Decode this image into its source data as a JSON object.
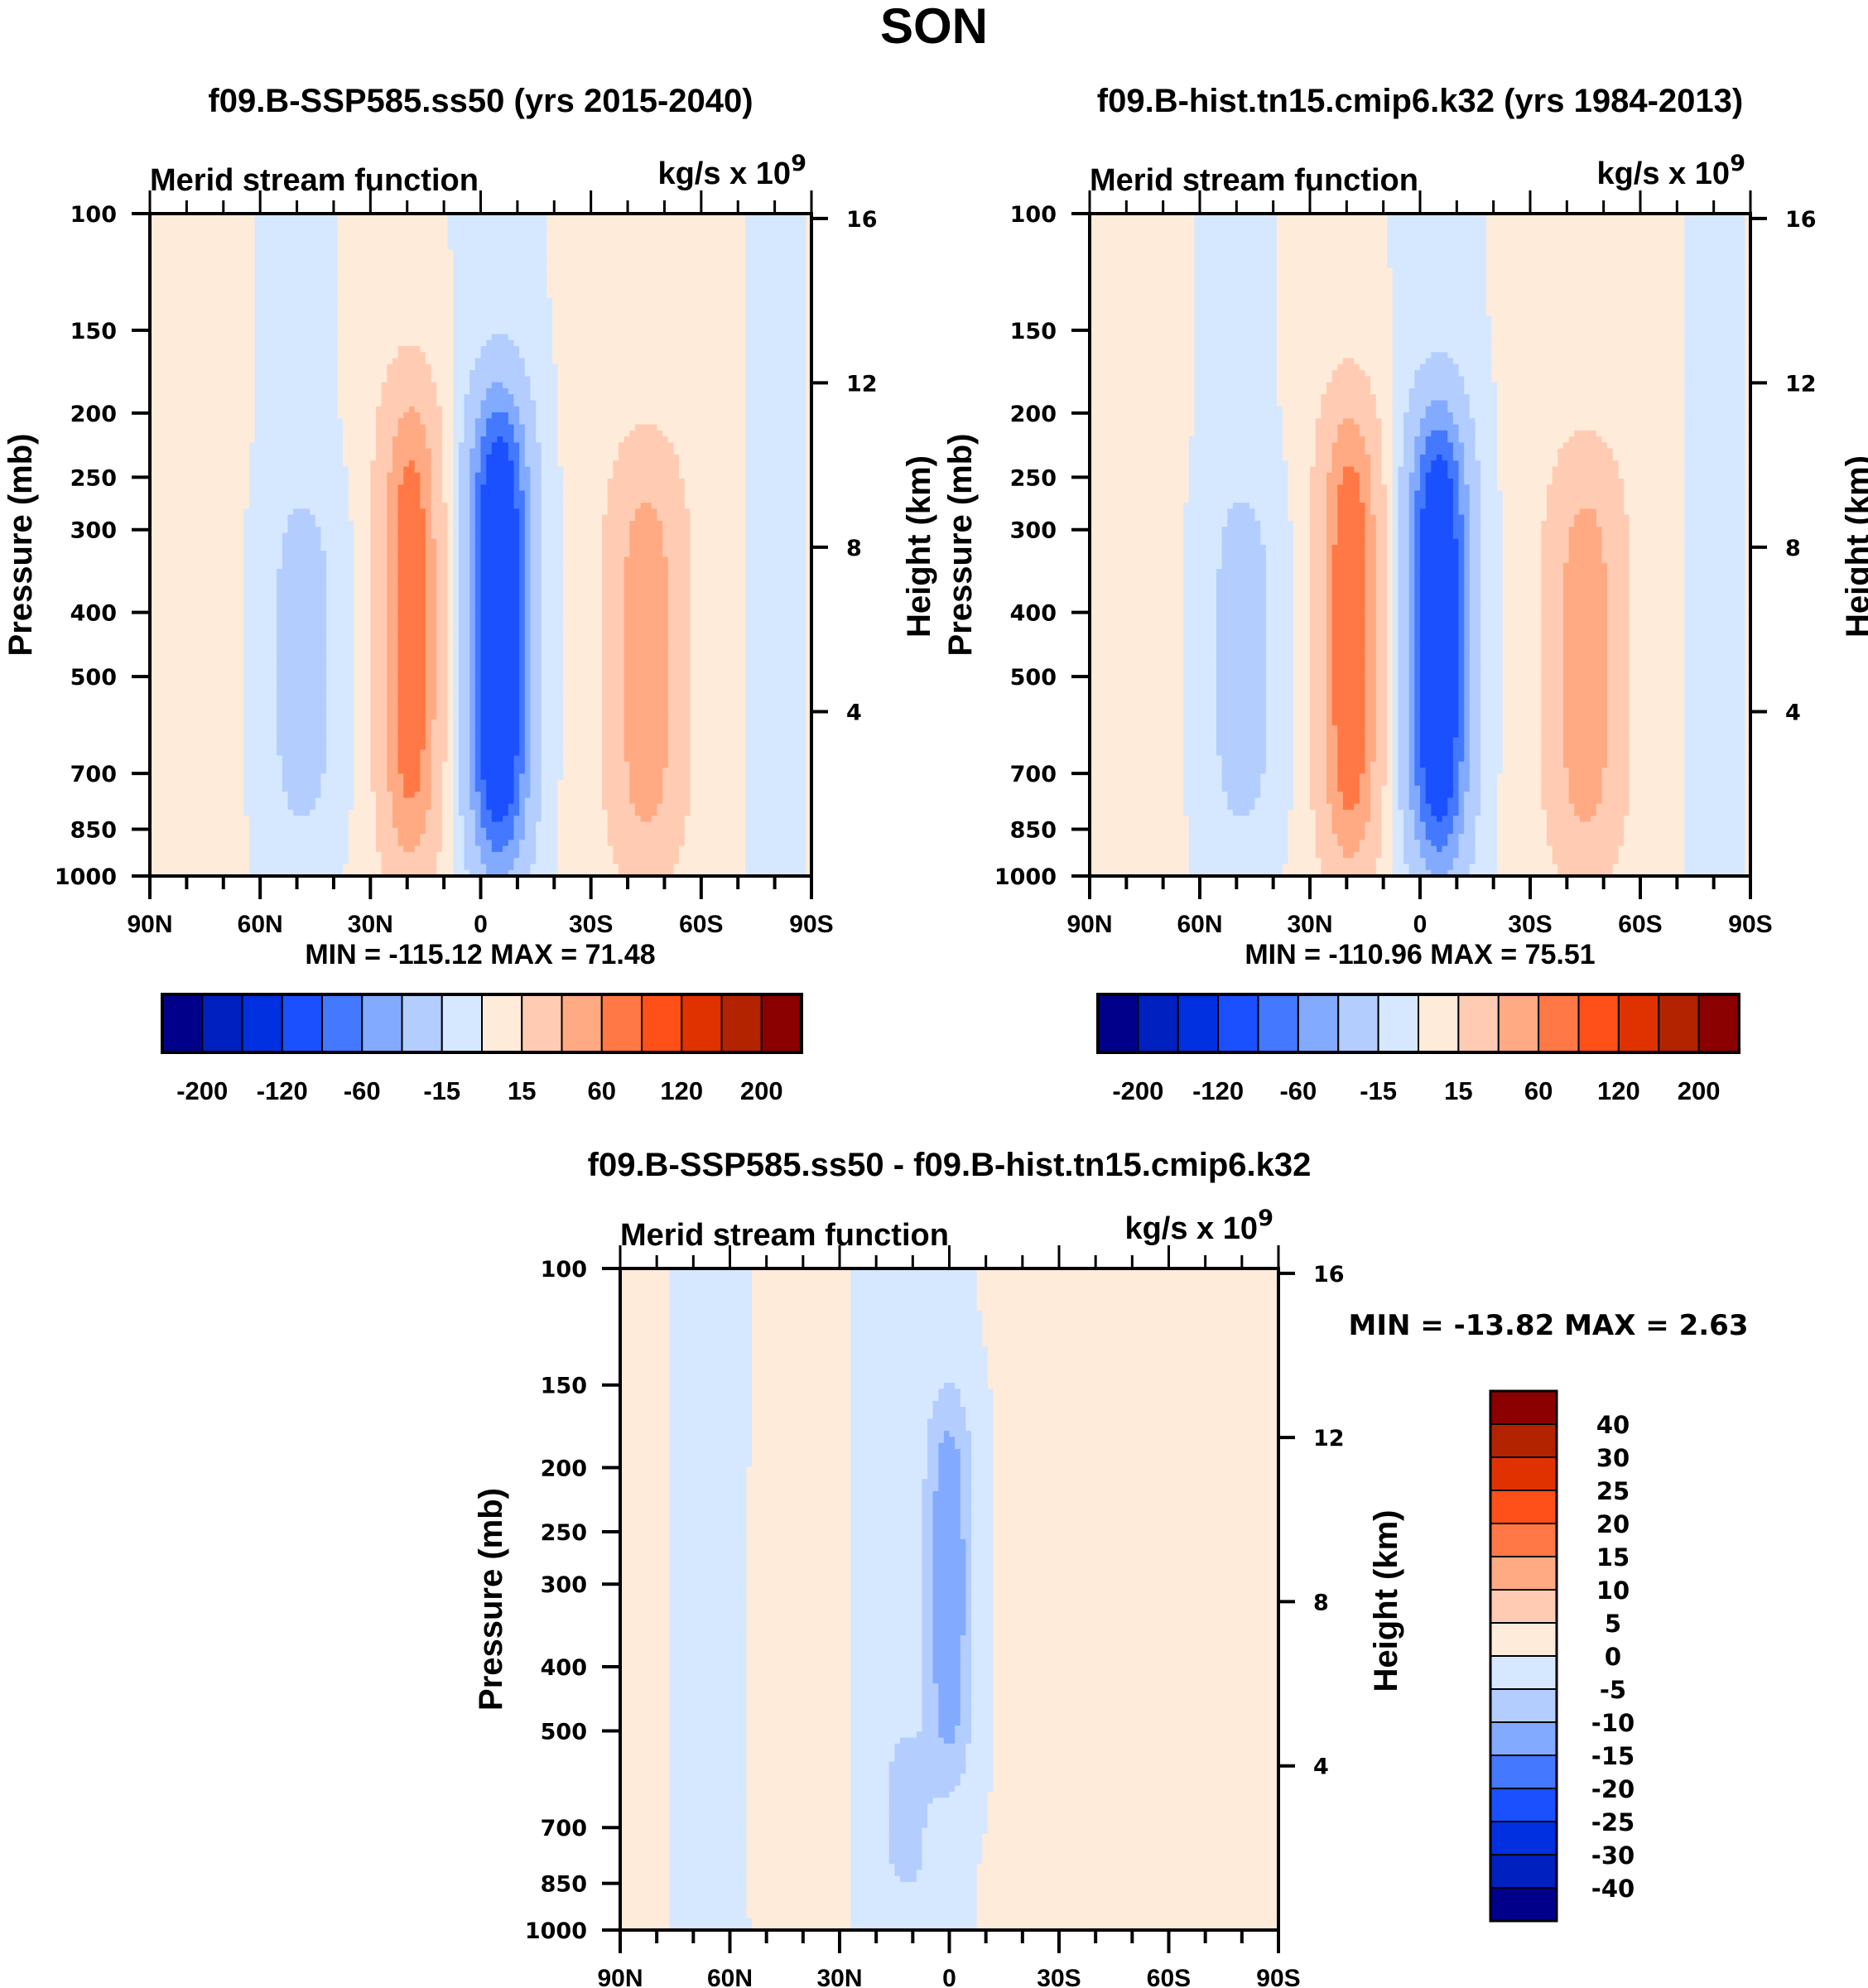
{
  "figure_title": "SON",
  "chart_data": [
    {
      "id": "panel-ssp585",
      "type": "heatmap",
      "subtype": "filled-contour",
      "title": "f09.B-SSP585.ss50 (yrs 2015-2040)",
      "left_string": "Merid stream function",
      "right_string": "kg/s x 10",
      "right_string_sup": "9",
      "xlabel": "",
      "ylabel": "Pressure (mb)",
      "ylabel_right": "Height (km)",
      "x_ticks": [
        "90N",
        "60N",
        "30N",
        "0",
        "30S",
        "60S",
        "90S"
      ],
      "x_range": [
        90,
        -90
      ],
      "y_ticks": [
        100,
        150,
        200,
        250,
        300,
        400,
        500,
        700,
        850,
        1000
      ],
      "y_range": [
        100,
        1000
      ],
      "y_scale": "log",
      "y_right_ticks": [
        16,
        12,
        8,
        4
      ],
      "min_max_label": "MIN = -115.12  MAX =  71.48",
      "min": -115.12,
      "max": 71.48,
      "colorbar": {
        "orientation": "horizontal",
        "levels": [
          -200,
          -160,
          -120,
          -80,
          -60,
          -40,
          -15,
          0,
          15,
          40,
          60,
          80,
          120,
          160,
          200
        ],
        "tick_labels": [
          "-200",
          "-120",
          "-60",
          "-15",
          "15",
          "60",
          "120",
          "200"
        ],
        "colors": [
          "#00008b",
          "#0020c0",
          "#0030e0",
          "#1a50ff",
          "#4378ff",
          "#82aaff",
          "#b3cdff",
          "#d6e8ff",
          "#ffebd9",
          "#ffccb3",
          "#ffaa83",
          "#ff7845",
          "#ff5019",
          "#e03200",
          "#b42300",
          "#8b0000"
        ]
      },
      "features": [
        {
          "name": "equatorial-cell-negative",
          "lat_center": -5,
          "p_top": 190,
          "p_bottom": 960,
          "peak": -115.12,
          "sign": "negative"
        },
        {
          "name": "nh-hadley-positive",
          "lat_center": 19,
          "p_top": 185,
          "p_bottom": 980,
          "peak": 71.48,
          "sign": "positive"
        },
        {
          "name": "sh-ferrel-positive",
          "lat_center": -45,
          "p_top": 230,
          "p_bottom": 980,
          "peak": 50,
          "sign": "positive"
        },
        {
          "name": "nh-ferrel-negative",
          "lat_center": 48,
          "p_top": 260,
          "p_bottom": 870,
          "peak": -20,
          "sign": "negative"
        }
      ]
    },
    {
      "id": "panel-hist",
      "type": "heatmap",
      "subtype": "filled-contour",
      "title": "f09.B-hist.tn15.cmip6.k32 (yrs 1984-2013)",
      "left_string": "Merid stream function",
      "right_string": "kg/s x 10",
      "right_string_sup": "9",
      "xlabel": "",
      "ylabel": "Pressure (mb)",
      "ylabel_right": "Height (km)",
      "x_ticks": [
        "90N",
        "60N",
        "30N",
        "0",
        "30S",
        "60S",
        "90S"
      ],
      "x_range": [
        90,
        -90
      ],
      "y_ticks": [
        100,
        150,
        200,
        250,
        300,
        400,
        500,
        700,
        850,
        1000
      ],
      "y_range": [
        100,
        1000
      ],
      "y_scale": "log",
      "y_right_ticks": [
        16,
        12,
        8,
        4
      ],
      "min_max_label": "MIN = -110.96  MAX =  75.51",
      "min": -110.96,
      "max": 75.51,
      "colorbar": {
        "orientation": "horizontal",
        "levels": [
          -200,
          -160,
          -120,
          -80,
          -60,
          -40,
          -15,
          0,
          15,
          40,
          60,
          80,
          120,
          160,
          200
        ],
        "tick_labels": [
          "-200",
          "-120",
          "-60",
          "-15",
          "15",
          "60",
          "120",
          "200"
        ],
        "colors": [
          "#00008b",
          "#0020c0",
          "#0030e0",
          "#1a50ff",
          "#4378ff",
          "#82aaff",
          "#b3cdff",
          "#d6e8ff",
          "#ffebd9",
          "#ffccb3",
          "#ffaa83",
          "#ff7845",
          "#ff5019",
          "#e03200",
          "#b42300",
          "#8b0000"
        ]
      },
      "features": [
        {
          "name": "equatorial-cell-negative",
          "lat_center": -5,
          "p_top": 200,
          "p_bottom": 960,
          "peak": -110.96,
          "sign": "negative"
        },
        {
          "name": "nh-hadley-positive",
          "lat_center": 19,
          "p_top": 195,
          "p_bottom": 980,
          "peak": 75.51,
          "sign": "positive"
        },
        {
          "name": "sh-ferrel-positive",
          "lat_center": -45,
          "p_top": 235,
          "p_bottom": 980,
          "peak": 50,
          "sign": "positive"
        },
        {
          "name": "nh-ferrel-negative",
          "lat_center": 48,
          "p_top": 255,
          "p_bottom": 870,
          "peak": -20,
          "sign": "negative"
        }
      ]
    },
    {
      "id": "panel-diff",
      "type": "heatmap",
      "subtype": "filled-contour",
      "title": "f09.B-SSP585.ss50 - f09.B-hist.tn15.cmip6.k32",
      "left_string": "Merid stream function",
      "right_string": "kg/s x 10",
      "right_string_sup": "9",
      "xlabel": "",
      "ylabel": "Pressure (mb)",
      "ylabel_right": "Height (km)",
      "x_ticks": [
        "90N",
        "60N",
        "30N",
        "0",
        "30S",
        "60S",
        "90S"
      ],
      "x_range": [
        90,
        -90
      ],
      "y_ticks": [
        100,
        150,
        200,
        250,
        300,
        400,
        500,
        700,
        850,
        1000
      ],
      "y_range": [
        100,
        1000
      ],
      "y_scale": "log",
      "y_right_ticks": [
        16,
        12,
        8,
        4
      ],
      "min_max_label": "MIN = -13.82  MAX =   2.63",
      "min": -13.82,
      "max": 2.63,
      "colorbar": {
        "orientation": "vertical",
        "levels": [
          -40,
          -30,
          -25,
          -20,
          -15,
          -10,
          -5,
          0,
          5,
          10,
          15,
          20,
          25,
          30,
          40
        ],
        "tick_labels": [
          "40",
          "30",
          "25",
          "20",
          "15",
          "10",
          "5",
          "0",
          "-5",
          "-10",
          "-15",
          "-20",
          "-25",
          "-30",
          "-40"
        ],
        "colors": [
          "#00008b",
          "#0020c0",
          "#0030e0",
          "#1a50ff",
          "#4378ff",
          "#82aaff",
          "#b3cdff",
          "#d6e8ff",
          "#ffebd9",
          "#ffccb3",
          "#ffaa83",
          "#ff7845",
          "#ff5019",
          "#e03200",
          "#b42300",
          "#8b0000"
        ]
      },
      "features": [
        {
          "name": "equatorial-upper-negative",
          "lat_center": 0,
          "p_top": 155,
          "p_bottom": 600,
          "peak": -13.82,
          "sign": "negative"
        },
        {
          "name": "nh-subtropic-negative",
          "lat_center": 12,
          "p_top": 500,
          "p_bottom": 880,
          "peak": -7,
          "sign": "negative"
        },
        {
          "name": "nh-positive-band",
          "lat_center": 45,
          "p_top": 190,
          "p_bottom": 1000,
          "peak": 2.63,
          "sign": "positive"
        },
        {
          "name": "sh-positive-band",
          "lat_center": -62,
          "p_top": 100,
          "p_bottom": 1000,
          "peak": 2,
          "sign": "positive"
        }
      ]
    }
  ]
}
